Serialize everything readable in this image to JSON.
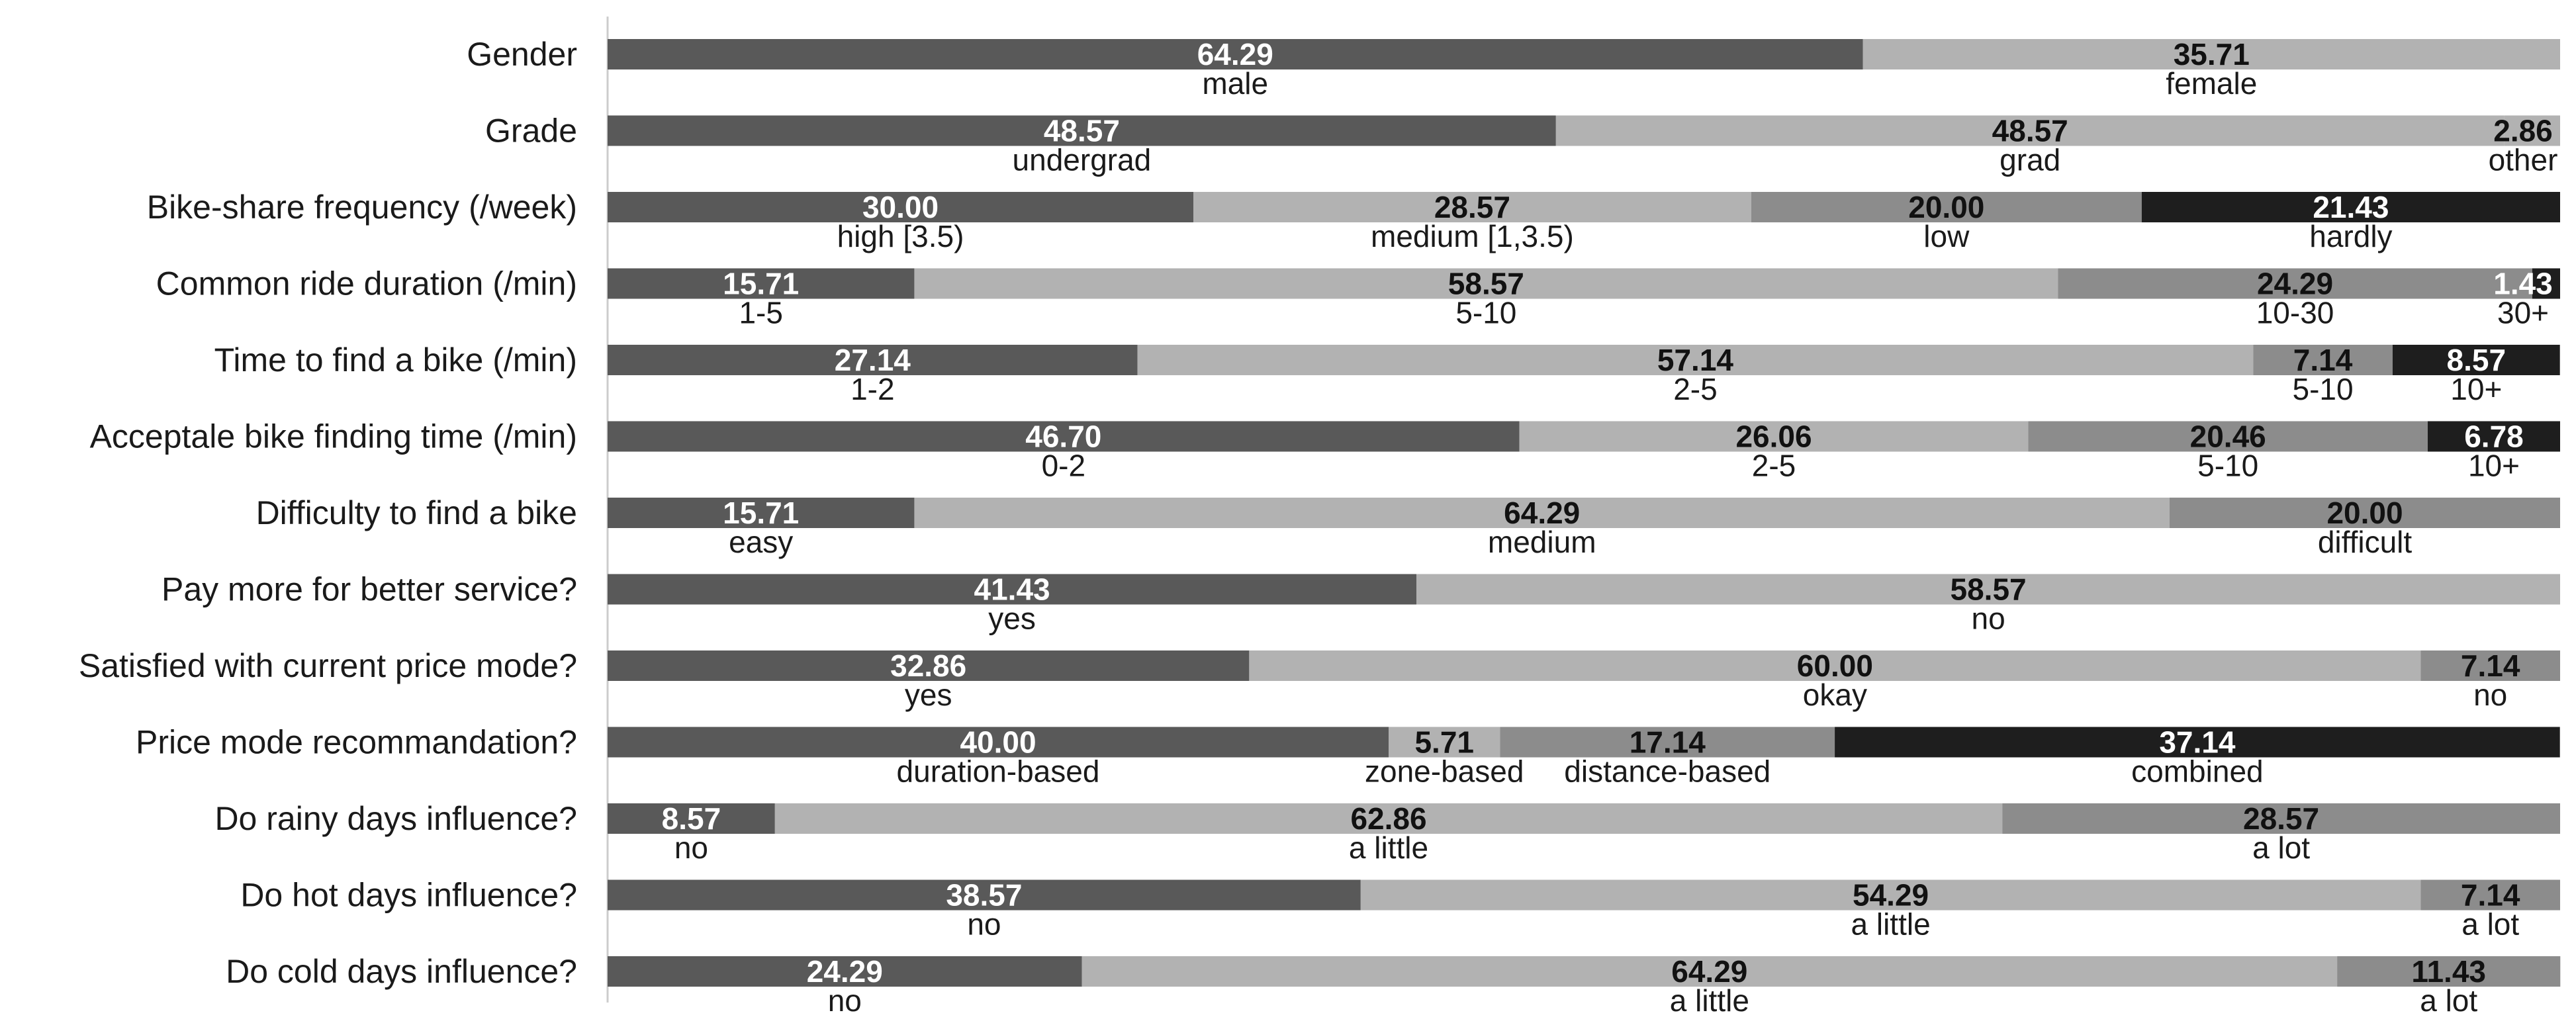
{
  "chart_data": {
    "type": "bar",
    "orientation": "horizontal",
    "stacked": "100%",
    "colors": {
      "shade1": "#595959",
      "shade2": "#b2b2b2",
      "shade3": "#8c8c8c",
      "shade4": "#1e1e1e",
      "axis": "#cccccc"
    },
    "rows": [
      {
        "label": "Gender",
        "segments": [
          {
            "value": 64.29,
            "text": "64.29",
            "category": "male",
            "shade": "shade1"
          },
          {
            "value": 35.71,
            "text": "35.71",
            "category": "female",
            "shade": "shade2"
          }
        ]
      },
      {
        "label": "Grade",
        "segments": [
          {
            "value": 48.57,
            "text": "48.57",
            "category": "undergrad",
            "shade": "shade1"
          },
          {
            "value": 48.57,
            "text": "48.57",
            "category": "grad",
            "shade": "shade2"
          },
          {
            "value": 2.86,
            "text": "2.86",
            "category": "other",
            "shade": "shade2"
          }
        ]
      },
      {
        "label": "Bike-share frequency (/week)",
        "segments": [
          {
            "value": 30.0,
            "text": "30.00",
            "category": "high [3.5)",
            "shade": "shade1"
          },
          {
            "value": 28.57,
            "text": "28.57",
            "category": "medium [1,3.5)",
            "shade": "shade2"
          },
          {
            "value": 20.0,
            "text": "20.00",
            "category": "low",
            "shade": "shade3"
          },
          {
            "value": 21.43,
            "text": "21.43",
            "category": "hardly",
            "shade": "shade4"
          }
        ]
      },
      {
        "label": "Common ride duration (/min)",
        "segments": [
          {
            "value": 15.71,
            "text": "15.71",
            "category": "1-5",
            "shade": "shade1"
          },
          {
            "value": 58.57,
            "text": "58.57",
            "category": "5-10",
            "shade": "shade2"
          },
          {
            "value": 24.29,
            "text": "24.29",
            "category": "10-30",
            "shade": "shade3"
          },
          {
            "value": 1.43,
            "text": "1.43",
            "category": "30+",
            "shade": "shade4"
          }
        ]
      },
      {
        "label": "Time to find a bike (/min)",
        "segments": [
          {
            "value": 27.14,
            "text": "27.14",
            "category": "1-2",
            "shade": "shade1"
          },
          {
            "value": 57.14,
            "text": "57.14",
            "category": "2-5",
            "shade": "shade2"
          },
          {
            "value": 7.14,
            "text": "7.14",
            "category": "5-10",
            "shade": "shade3"
          },
          {
            "value": 8.57,
            "text": "8.57",
            "category": "10+",
            "shade": "shade4"
          }
        ]
      },
      {
        "label": "Acceptale bike finding time (/min)",
        "segments": [
          {
            "value": 46.7,
            "text": "46.70",
            "category": "0-2",
            "shade": "shade1"
          },
          {
            "value": 26.06,
            "text": "26.06",
            "category": "2-5",
            "shade": "shade2"
          },
          {
            "value": 20.46,
            "text": "20.46",
            "category": "5-10",
            "shade": "shade3"
          },
          {
            "value": 6.78,
            "text": "6.78",
            "category": "10+",
            "shade": "shade4"
          }
        ]
      },
      {
        "label": "Difficulty to find a bike",
        "segments": [
          {
            "value": 15.71,
            "text": "15.71",
            "category": "easy",
            "shade": "shade1"
          },
          {
            "value": 64.29,
            "text": "64.29",
            "category": "medium",
            "shade": "shade2"
          },
          {
            "value": 20.0,
            "text": "20.00",
            "category": "difficult",
            "shade": "shade3"
          }
        ]
      },
      {
        "label": "Pay more for better service?",
        "segments": [
          {
            "value": 41.43,
            "text": "41.43",
            "category": "yes",
            "shade": "shade1"
          },
          {
            "value": 58.57,
            "text": "58.57",
            "category": "no",
            "shade": "shade2"
          }
        ]
      },
      {
        "label": "Satisfied with current price mode?",
        "segments": [
          {
            "value": 32.86,
            "text": "32.86",
            "category": "yes",
            "shade": "shade1"
          },
          {
            "value": 60.0,
            "text": "60.00",
            "category": "okay",
            "shade": "shade2"
          },
          {
            "value": 7.14,
            "text": "7.14",
            "category": "no",
            "shade": "shade3"
          }
        ]
      },
      {
        "label": "Price mode recommandation?",
        "segments": [
          {
            "value": 40.0,
            "text": "40.00",
            "category": "duration-based",
            "shade": "shade1"
          },
          {
            "value": 5.71,
            "text": "5.71",
            "category": "zone-based",
            "shade": "shade2"
          },
          {
            "value": 17.14,
            "text": "17.14",
            "category": "distance-based",
            "shade": "shade3"
          },
          {
            "value": 37.14,
            "text": "37.14",
            "category": "combined",
            "shade": "shade4"
          }
        ]
      },
      {
        "label": "Do rainy days influence?",
        "segments": [
          {
            "value": 8.57,
            "text": "8.57",
            "category": "no",
            "shade": "shade1"
          },
          {
            "value": 62.86,
            "text": "62.86",
            "category": "a little",
            "shade": "shade2"
          },
          {
            "value": 28.57,
            "text": "28.57",
            "category": "a lot",
            "shade": "shade3"
          }
        ]
      },
      {
        "label": "Do hot days influence?",
        "segments": [
          {
            "value": 38.57,
            "text": "38.57",
            "category": "no",
            "shade": "shade1"
          },
          {
            "value": 54.29,
            "text": "54.29",
            "category": "a little",
            "shade": "shade2"
          },
          {
            "value": 7.14,
            "text": "7.14",
            "category": "a lot",
            "shade": "shade3"
          }
        ]
      },
      {
        "label": "Do cold days influence?",
        "segments": [
          {
            "value": 24.29,
            "text": "24.29",
            "category": "no",
            "shade": "shade1"
          },
          {
            "value": 64.29,
            "text": "64.29",
            "category": "a little",
            "shade": "shade2"
          },
          {
            "value": 11.43,
            "text": "11.43",
            "category": "a lot",
            "shade": "shade3"
          }
        ]
      }
    ]
  }
}
